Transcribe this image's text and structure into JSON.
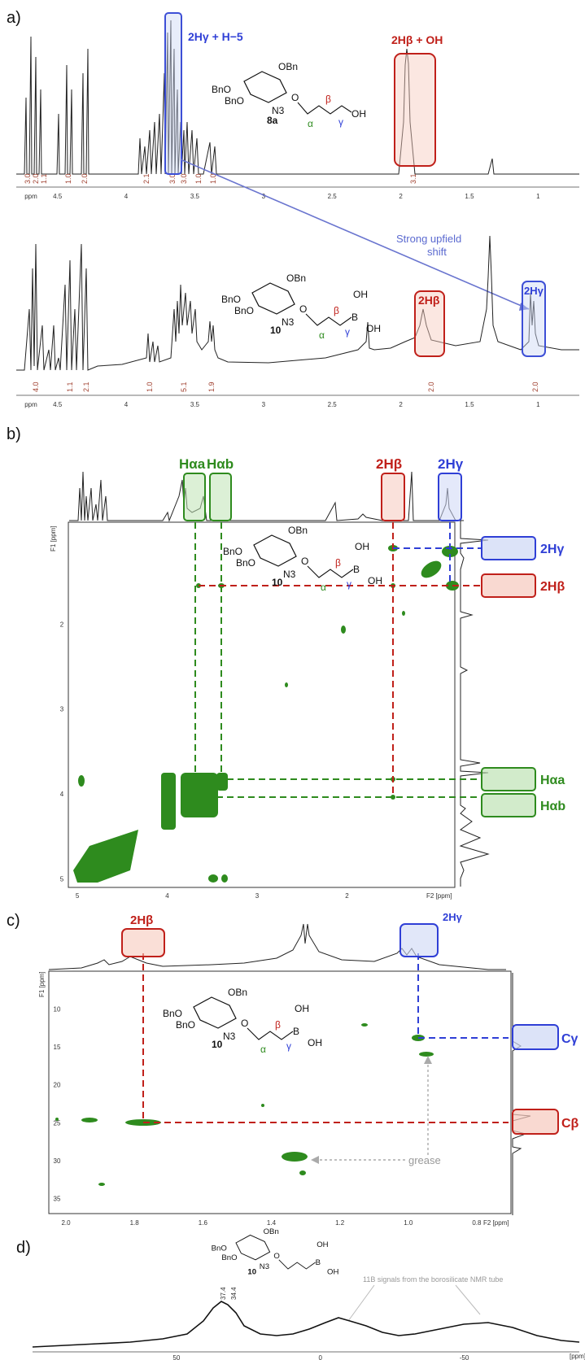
{
  "panels": {
    "a": {
      "letter": "a)",
      "top_spectrum": {
        "compound": "8a",
        "axis_unit": "ppm",
        "ticks": [
          "4.5",
          "4",
          "3.5",
          "3",
          "2.5",
          "2",
          "1.5",
          "1"
        ],
        "integrals": [
          "3.0",
          "2.0",
          "1.1",
          "1.0",
          "2.0",
          "2.1",
          "3.0",
          "3.0",
          "1.0",
          "1.0",
          "3.1"
        ],
        "label_gamma": "2Hγ + H−5",
        "label_beta": "2Hβ + OH"
      },
      "bottom_spectrum": {
        "compound": "10",
        "axis_unit": "ppm",
        "ticks": [
          "4.5",
          "4",
          "3.5",
          "3",
          "2.5",
          "2",
          "1.5",
          "1"
        ],
        "integrals": [
          "4.0",
          "1.1",
          "2.1",
          "1.0",
          "5.1",
          "1.9",
          "2.0",
          "2.0"
        ],
        "label_beta": "2Hβ",
        "label_gamma": "2Hγ"
      },
      "shift_note_line1": "Strong upfield",
      "shift_note_line2": "shift"
    },
    "b": {
      "letter": "b)",
      "compound": "10",
      "top_labels": [
        "Hαa",
        "Hαb",
        "2Hβ",
        "2Hγ"
      ],
      "right_labels": [
        "2Hγ",
        "2Hβ",
        "Hαa",
        "Hαb"
      ],
      "x_ticks": [
        "5",
        "4",
        "3",
        "2"
      ],
      "x_unit": "F2 [ppm]",
      "y_ticks": [
        "2",
        "3",
        "4",
        "5"
      ],
      "y_unit": "F1 [ppm]"
    },
    "c": {
      "letter": "c)",
      "compound": "10",
      "top_labels": [
        "2Hβ",
        "2Hγ"
      ],
      "right_labels": [
        "Cγ",
        "Cβ"
      ],
      "grease": "grease",
      "x_ticks": [
        "2.0",
        "1.8",
        "1.6",
        "1.4",
        "1.2",
        "1.0",
        "0.8"
      ],
      "x_unit": "F2 [ppm]",
      "y_ticks": [
        "10",
        "15",
        "20",
        "25",
        "30",
        "35"
      ],
      "y_unit": "F1 [ppm]"
    },
    "d": {
      "letter": "d)",
      "compound": "10",
      "peak_labels": [
        "37.4",
        "34.4"
      ],
      "note": "11B signals from the borosilicate NMR tube",
      "x_ticks": [
        "50",
        "0",
        "-50"
      ],
      "x_unit": "[ppm]"
    }
  },
  "molecule": {
    "bno": "BnO",
    "obn": "OBn",
    "n3": "N3",
    "oh": "OH",
    "o": "O",
    "b": "B",
    "alpha": "α",
    "beta": "β",
    "gamma": "γ"
  },
  "colors": {
    "blue": "#2f3fd6",
    "red": "#c0201a",
    "green": "#2e8b1e",
    "integral": "#a0402f"
  }
}
